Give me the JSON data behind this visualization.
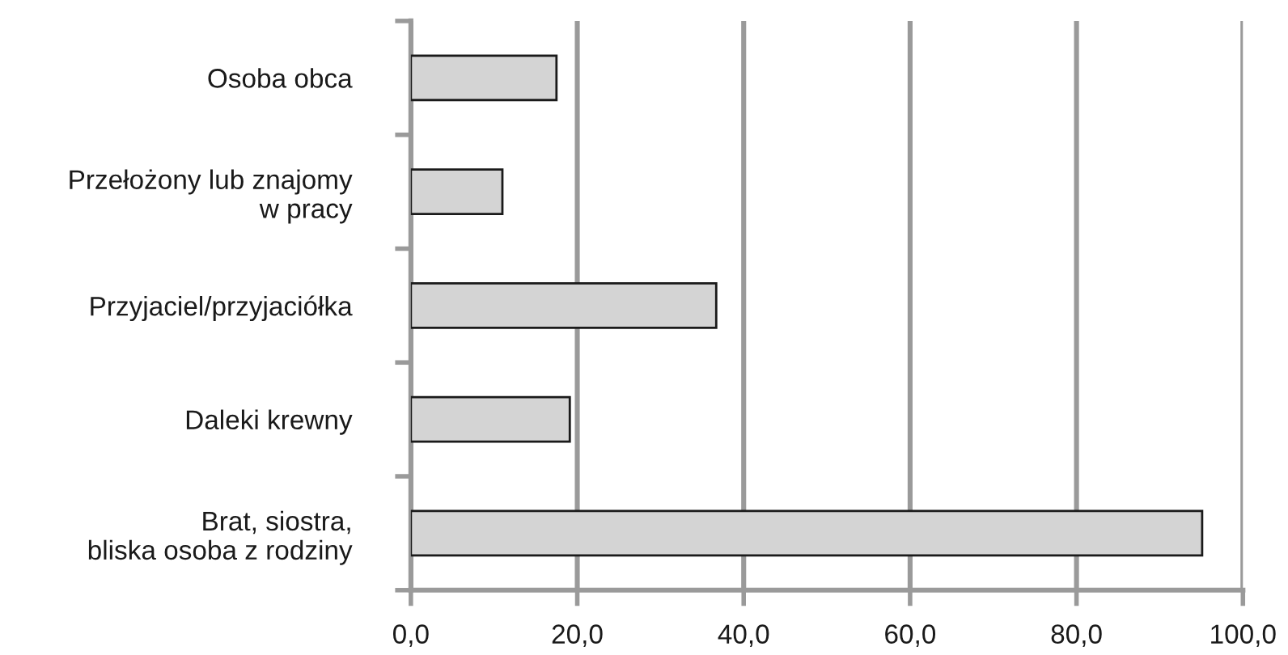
{
  "chart_data": {
    "type": "bar",
    "orientation": "horizontal",
    "categories": [
      "Osoba obca",
      "Przełożony lub znajomy\nw pracy",
      "Przyjaciel/przyjaciółka",
      "Daleki krewny",
      "Brat, siostra,\nbliska osoba z rodziny"
    ],
    "values": [
      17.5,
      11.0,
      36.7,
      19.1,
      95.1
    ],
    "color": "#d4d4d4",
    "xlim": [
      0,
      100
    ],
    "xticks": [
      {
        "value": 0,
        "label": "0,0"
      },
      {
        "value": 20,
        "label": "20,0"
      },
      {
        "value": 40,
        "label": "40,0"
      },
      {
        "value": 60,
        "label": "60,0"
      },
      {
        "value": 80,
        "label": "80,0"
      },
      {
        "value": 100,
        "label": "100,0"
      }
    ],
    "grid": "x"
  }
}
